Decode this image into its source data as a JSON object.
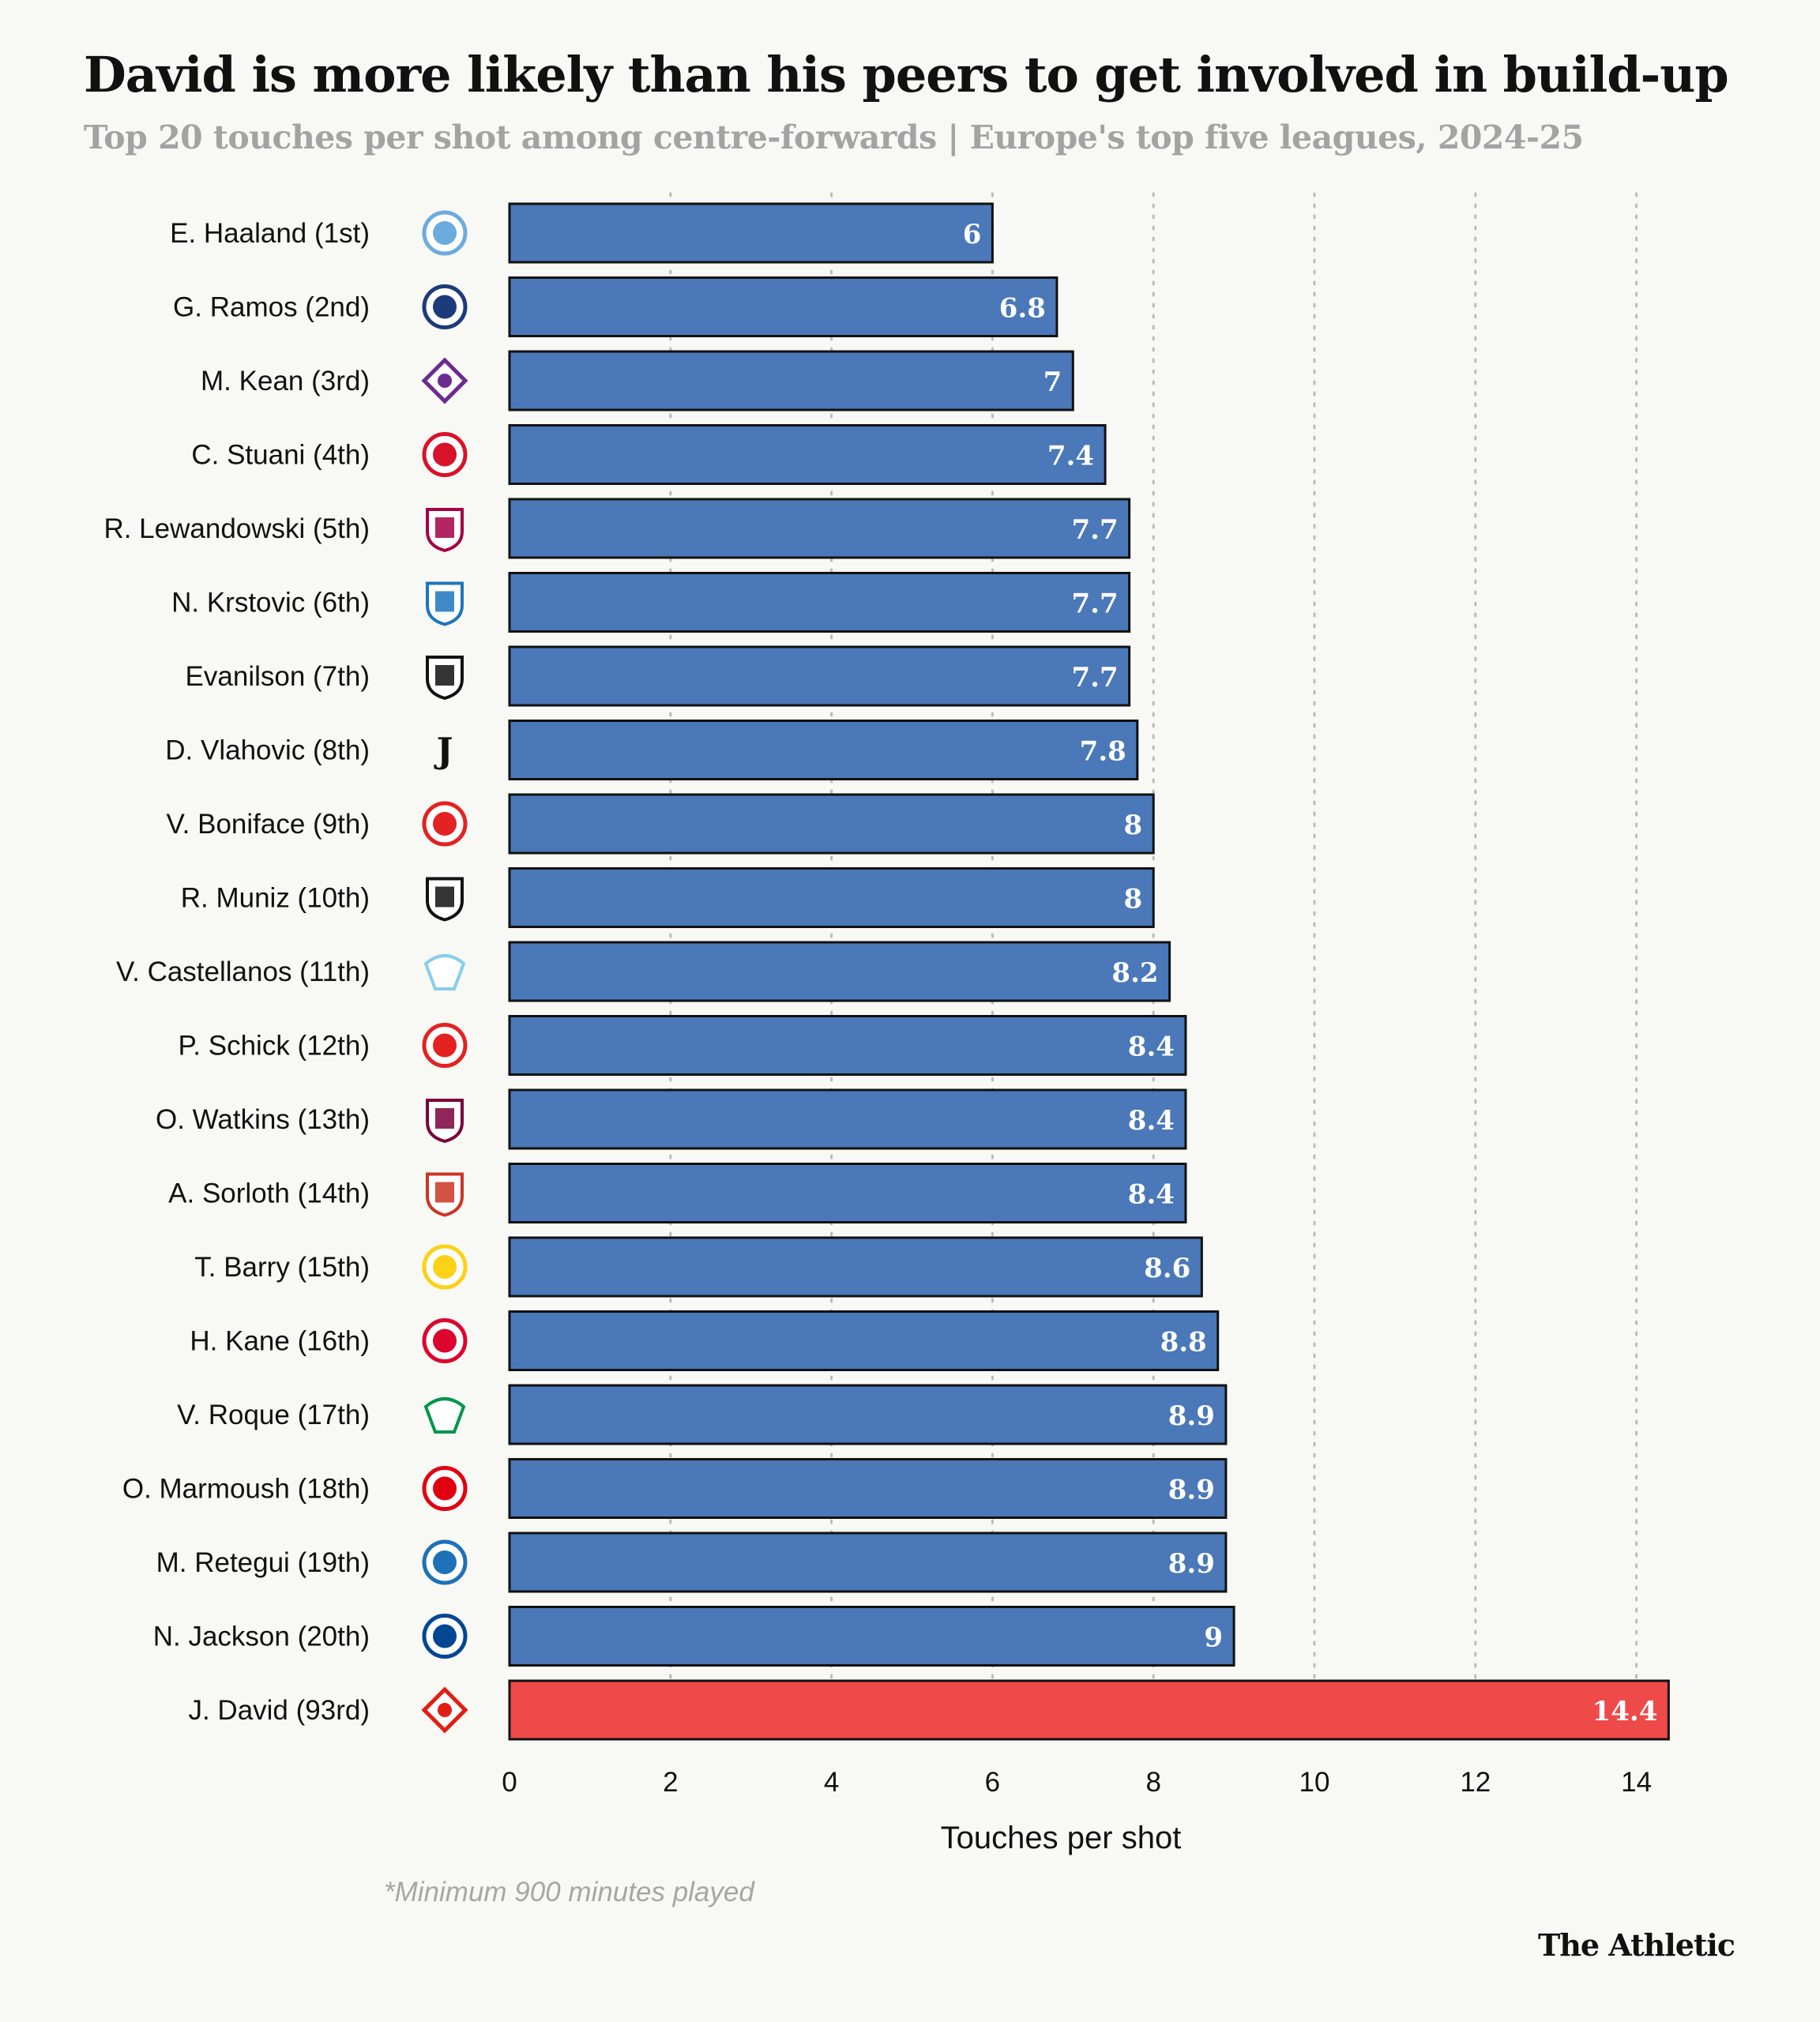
{
  "title": "David is more likely than his peers to get involved in build-up",
  "subtitle": "Top 20 touches per shot among centre-forwards | Europe's top five leagues, 2024-25",
  "footnote": "*Minimum 900 minutes played",
  "brand": "The Athletic",
  "colors": {
    "bar": "#4a78b8",
    "highlight": "#ef4a4a",
    "bar_stroke": "#111111",
    "grid": "#bbbbbb",
    "background": "#f8f8f4"
  },
  "chart_data": {
    "type": "bar",
    "orientation": "horizontal",
    "categories": [
      "E. Haaland (1st)",
      "G. Ramos (2nd)",
      "M. Kean (3rd)",
      "C. Stuani (4th)",
      "R. Lewandowski (5th)",
      "N. Krstovic (6th)",
      "Evanilson (7th)",
      "D. Vlahovic (8th)",
      "V. Boniface (9th)",
      "R. Muniz (10th)",
      "V. Castellanos (11th)",
      "P. Schick (12th)",
      "O. Watkins (13th)",
      "A. Sorloth (14th)",
      "T. Barry (15th)",
      "H. Kane (16th)",
      "V. Roque (17th)",
      "O. Marmoush (18th)",
      "M. Retegui (19th)",
      "N. Jackson (20th)",
      "J. David (93rd)"
    ],
    "values": [
      6,
      6.8,
      7,
      7.4,
      7.7,
      7.7,
      7.7,
      7.8,
      8,
      8,
      8.2,
      8.4,
      8.4,
      8.4,
      8.6,
      8.8,
      8.9,
      8.9,
      8.9,
      9,
      14.4
    ],
    "value_labels": [
      "6",
      "6.8",
      "7",
      "7.4",
      "7.7",
      "7.7",
      "7.7",
      "7.8",
      "8",
      "8",
      "8.2",
      "8.4",
      "8.4",
      "8.4",
      "8.6",
      "8.8",
      "8.9",
      "8.9",
      "8.9",
      "9",
      "14.4"
    ],
    "highlight_index": 20,
    "xlabel": "Touches per shot",
    "xlim": [
      0,
      14.4
    ],
    "xticks": [
      0,
      2,
      4,
      6,
      8,
      10,
      12,
      14
    ],
    "grid": true,
    "club_icons": [
      "man-city-crest-icon",
      "psg-crest-icon",
      "fiorentina-crest-icon",
      "girona-crest-icon",
      "barcelona-crest-icon",
      "lecce-crest-icon",
      "bournemouth-crest-icon",
      "juventus-crest-icon",
      "leverkusen-crest-icon",
      "fulham-crest-icon",
      "lazio-crest-icon",
      "leverkusen-crest-icon",
      "aston-villa-crest-icon",
      "atletico-crest-icon",
      "villarreal-crest-icon",
      "bayern-crest-icon",
      "real-betis-crest-icon",
      "eintracht-frankfurt-crest-icon",
      "atalanta-crest-icon",
      "chelsea-crest-icon",
      "lille-crest-icon"
    ]
  }
}
